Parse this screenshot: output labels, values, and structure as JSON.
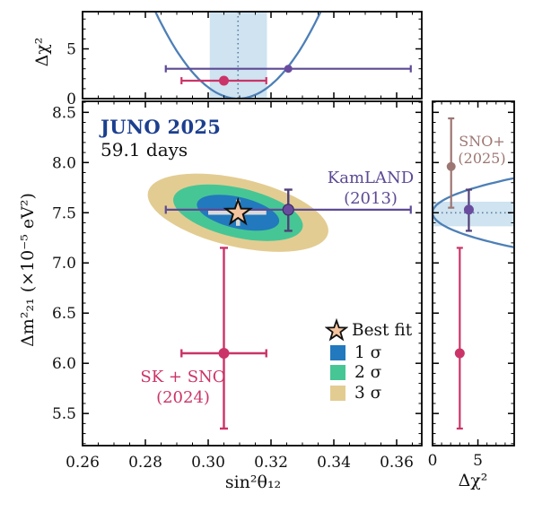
{
  "header": {
    "title": "JUNO 2025",
    "subtitle": "59.1 days"
  },
  "chart_data": {
    "type": "scatter",
    "description": "Confidence-region contour plot of solar neutrino oscillation parameters with marginalized Δχ² profile panels on top and right",
    "main_panel": {
      "xlabel": "sin²θ₁₂",
      "ylabel": "Δm²₂₁ (×10⁻⁵ eV²)",
      "xlim": [
        0.26,
        0.368
      ],
      "ylim": [
        5.18,
        8.61
      ],
      "xticks": {
        "values": [
          0.26,
          0.28,
          0.3,
          0.32,
          0.34,
          0.36
        ],
        "labels": [
          "0.26",
          "0.28",
          "0.30",
          "0.32",
          "0.34",
          "0.36"
        ],
        "minor_step": 0.005
      },
      "yticks": {
        "values": [
          5.5,
          6.0,
          6.5,
          7.0,
          7.5,
          8.0,
          8.5
        ],
        "labels": [
          "5.5",
          "6.0",
          "6.5",
          "7.0",
          "7.5",
          "8.0",
          "8.5"
        ],
        "minor_step": 0.1
      },
      "best_fit": {
        "x": 0.3095,
        "y": 7.5,
        "xerr": [
          0.3,
          0.3185
        ],
        "yerr": [
          7.37,
          7.63
        ]
      },
      "contours": [
        {
          "label": "1σ",
          "color": "#2279bd",
          "semi_x": 0.0134,
          "semi_y": 0.156
        },
        {
          "label": "2σ",
          "color": "#46c695",
          "semi_x": 0.0211,
          "semi_y": 0.246
        },
        {
          "label": "3σ",
          "color": "#e3cc92",
          "semi_x": 0.0294,
          "semi_y": 0.339
        }
      ],
      "contour_tilt_deg": 13
    },
    "top_panel": {
      "ylabel": "Δχ²",
      "ylim": [
        0,
        8.74
      ],
      "yticks": {
        "values": [
          0,
          5
        ],
        "labels": [
          "0",
          "5"
        ],
        "minor_step": 1
      },
      "profile": {
        "center": 0.3095,
        "sigma": 0.0089
      },
      "band_x": [
        0.3005,
        0.3187
      ]
    },
    "right_panel": {
      "xlabel": "Δχ²",
      "xlim": [
        0,
        9
      ],
      "xticks": {
        "values": [
          0,
          5
        ],
        "labels": [
          "0",
          "5"
        ],
        "minor_step": 1
      },
      "profile": {
        "center": 7.5,
        "sigma": 0.115
      },
      "band_y": [
        7.365,
        7.61
      ]
    },
    "experiments": [
      {
        "name": "KamLAND",
        "year": "(2013)",
        "color": "#5d4a94",
        "point_fill": "#6a4c9e",
        "err_color": "#504078",
        "x": 0.3255,
        "y": 7.53,
        "x_range": [
          0.2865,
          0.3645
        ],
        "y_range": [
          7.32,
          7.73
        ],
        "chi2_top": 3.0,
        "chi2_right": 4.0
      },
      {
        "name": "SK + SNO",
        "year": "(2024)",
        "color": "#cb3468",
        "point_fill": "#cb3468",
        "err_color": "#cb3468",
        "x": 0.305,
        "y": 6.1,
        "x_range": [
          0.2915,
          0.3185
        ],
        "y_range": [
          5.35,
          7.15
        ],
        "chi2_top": 1.8,
        "chi2_right": 3.0
      },
      {
        "name": "SNO+",
        "year": "(2025)",
        "color": "#9c7672",
        "point_fill": "#9c7672",
        "err_color": "#9c7672",
        "y": 7.96,
        "y_range": [
          7.55,
          8.44
        ],
        "chi2_right": 2.05
      }
    ],
    "legend": {
      "best_fit_label": "Best fit",
      "star_fill": "#f5c49e",
      "sigma_labels": [
        "1 σ",
        "2 σ",
        "3 σ"
      ]
    },
    "style": {
      "curve_color": "#4d7fb6",
      "band_color": "#cfe3f0",
      "dotted_color": "#5b7da3",
      "crosshair_color": "#d9d9d9",
      "title_color": "#1c3f8f"
    }
  }
}
